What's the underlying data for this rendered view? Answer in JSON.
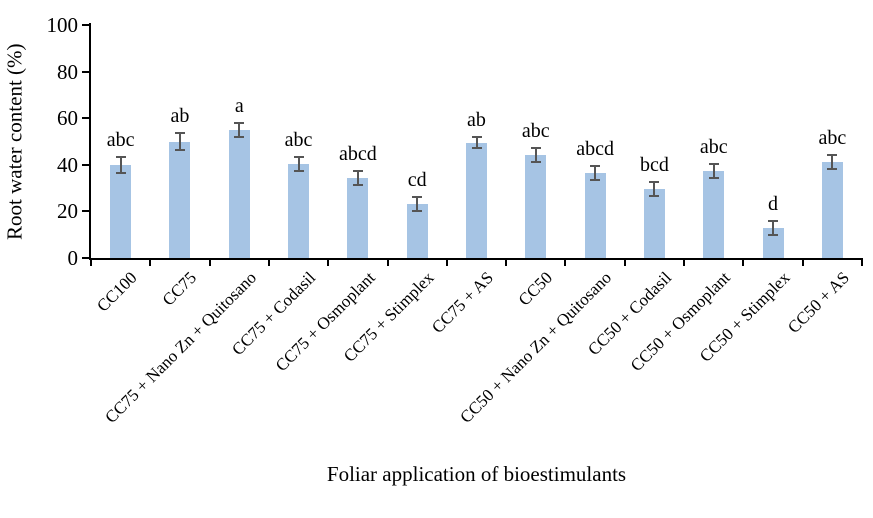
{
  "chart_data": {
    "type": "bar",
    "title": "",
    "xlabel": "Foliar application of bioestimulants",
    "ylabel": "Root water content (%)",
    "ylim": [
      0,
      100
    ],
    "yticks": [
      0,
      20,
      40,
      60,
      80,
      100
    ],
    "grid": false,
    "legend_position": "none",
    "categories": [
      "CC100",
      "CC75",
      "CC75 + Nano Zn + Quitosano",
      "CC75 + Codasil",
      "CC75 + Osmoplant",
      "CC75 + Stimplex",
      "CC75 + AS",
      "CC50",
      "CC50 + Nano Zn + Quitosano",
      "CC50 + Codasil",
      "CC50 + Osmoplant",
      "CC50 + Stimplex",
      "CC50 + AS"
    ],
    "series": [
      {
        "name": "Root water content",
        "values": [
          40,
          50,
          55,
          40.5,
          34.5,
          23,
          49.5,
          44,
          36.5,
          29.5,
          37.5,
          13,
          41
        ],
        "errors": [
          3.5,
          3.5,
          3,
          3,
          3,
          3,
          2.5,
          3,
          3,
          3,
          3,
          3,
          3
        ],
        "significance_letters": [
          "abc",
          "ab",
          "a",
          "abc",
          "abcd",
          "cd",
          "ab",
          "abc",
          "abcd",
          "bcd",
          "abc",
          "d",
          "abc"
        ]
      }
    ],
    "bar_color": "#a6c4e4",
    "error_color": "#555555",
    "axis_color": "#000000"
  }
}
